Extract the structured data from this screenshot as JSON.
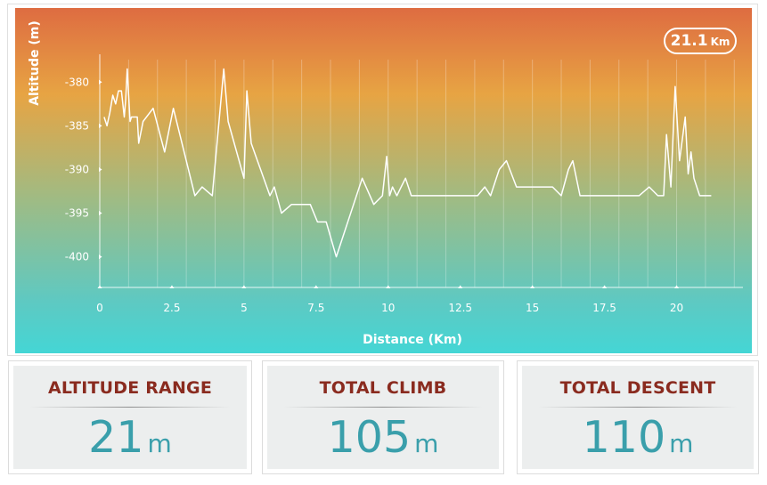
{
  "chart_data": {
    "type": "line",
    "xlabel": "Distance (Km)",
    "ylabel": "Altitude (m)",
    "xlim": [
      0,
      22.3
    ],
    "ylim": [
      -403.5,
      -376
    ],
    "x_ticks": [
      0,
      2.5,
      5,
      7.5,
      10,
      12.5,
      15,
      17.5,
      20
    ],
    "x_tick_labels": [
      "0",
      "2.5",
      "5",
      "7.5",
      "10",
      "12.5",
      "15",
      "17.5",
      "20"
    ],
    "y_ticks": [
      -380,
      -385,
      -390,
      -395,
      -400
    ],
    "y_tick_labels": [
      "-380",
      "-385",
      "-390",
      "-395",
      "-400"
    ],
    "grid": "vertical",
    "series": [
      {
        "color": "#ffffff",
        "x": [
          0.15,
          0.25,
          0.35,
          0.45,
          0.55,
          0.65,
          0.75,
          0.85,
          0.9,
          0.95,
          1.05,
          1.1,
          1.3,
          1.35,
          1.5,
          1.85,
          2.25,
          2.55,
          3.3,
          3.55,
          3.9,
          4.3,
          4.45,
          5.0,
          5.1,
          5.25,
          5.9,
          6.05,
          6.3,
          6.65,
          7.3,
          7.55,
          7.85,
          8.2,
          9.1,
          9.5,
          9.8,
          9.95,
          10.05,
          10.15,
          10.3,
          10.45,
          10.6,
          10.8,
          11.2,
          13.1,
          13.35,
          13.55,
          13.85,
          14.1,
          14.45,
          15.7,
          16.0,
          16.25,
          16.4,
          16.65,
          18.7,
          19.05,
          19.35,
          19.55,
          19.65,
          19.8,
          19.95,
          20.1,
          20.2,
          20.3,
          20.4,
          20.5,
          20.6,
          20.8,
          21.2
        ],
        "y": [
          -384.0,
          -385.0,
          -383.5,
          -381.5,
          -382.5,
          -381.0,
          -381.0,
          -384.0,
          -382.0,
          -378.5,
          -384.5,
          -384.0,
          -384.0,
          -387.0,
          -384.5,
          -383.0,
          -388.0,
          -383.0,
          -393.0,
          -392.0,
          -393.0,
          -378.5,
          -384.5,
          -391.0,
          -381.0,
          -387.0,
          -393.0,
          -392.0,
          -395.0,
          -394.0,
          -394.0,
          -396.0,
          -396.0,
          -400.0,
          -391.0,
          -394.0,
          -393.0,
          -388.5,
          -393.0,
          -392.0,
          -393.0,
          -392.0,
          -391.0,
          -393.0,
          -393.0,
          -393.0,
          -392.0,
          -393.0,
          -390.0,
          -389.0,
          -392.0,
          -392.0,
          -393.0,
          -390.0,
          -389.0,
          -393.0,
          -393.0,
          -392.0,
          -393.0,
          -393.0,
          -386.0,
          -392.0,
          -380.5,
          -389.0,
          -386.5,
          -384.0,
          -390.5,
          -388.0,
          -391.0,
          -393.0,
          -393.0
        ]
      }
    ]
  },
  "distance_badge": {
    "value": "21.1",
    "unit": "Km"
  },
  "stats": [
    {
      "title": "ALTITUDE RANGE",
      "value": "21",
      "unit": "m"
    },
    {
      "title": "TOTAL CLIMB",
      "value": "105",
      "unit": "m"
    },
    {
      "title": "TOTAL DESCENT",
      "value": "110",
      "unit": "m"
    }
  ]
}
